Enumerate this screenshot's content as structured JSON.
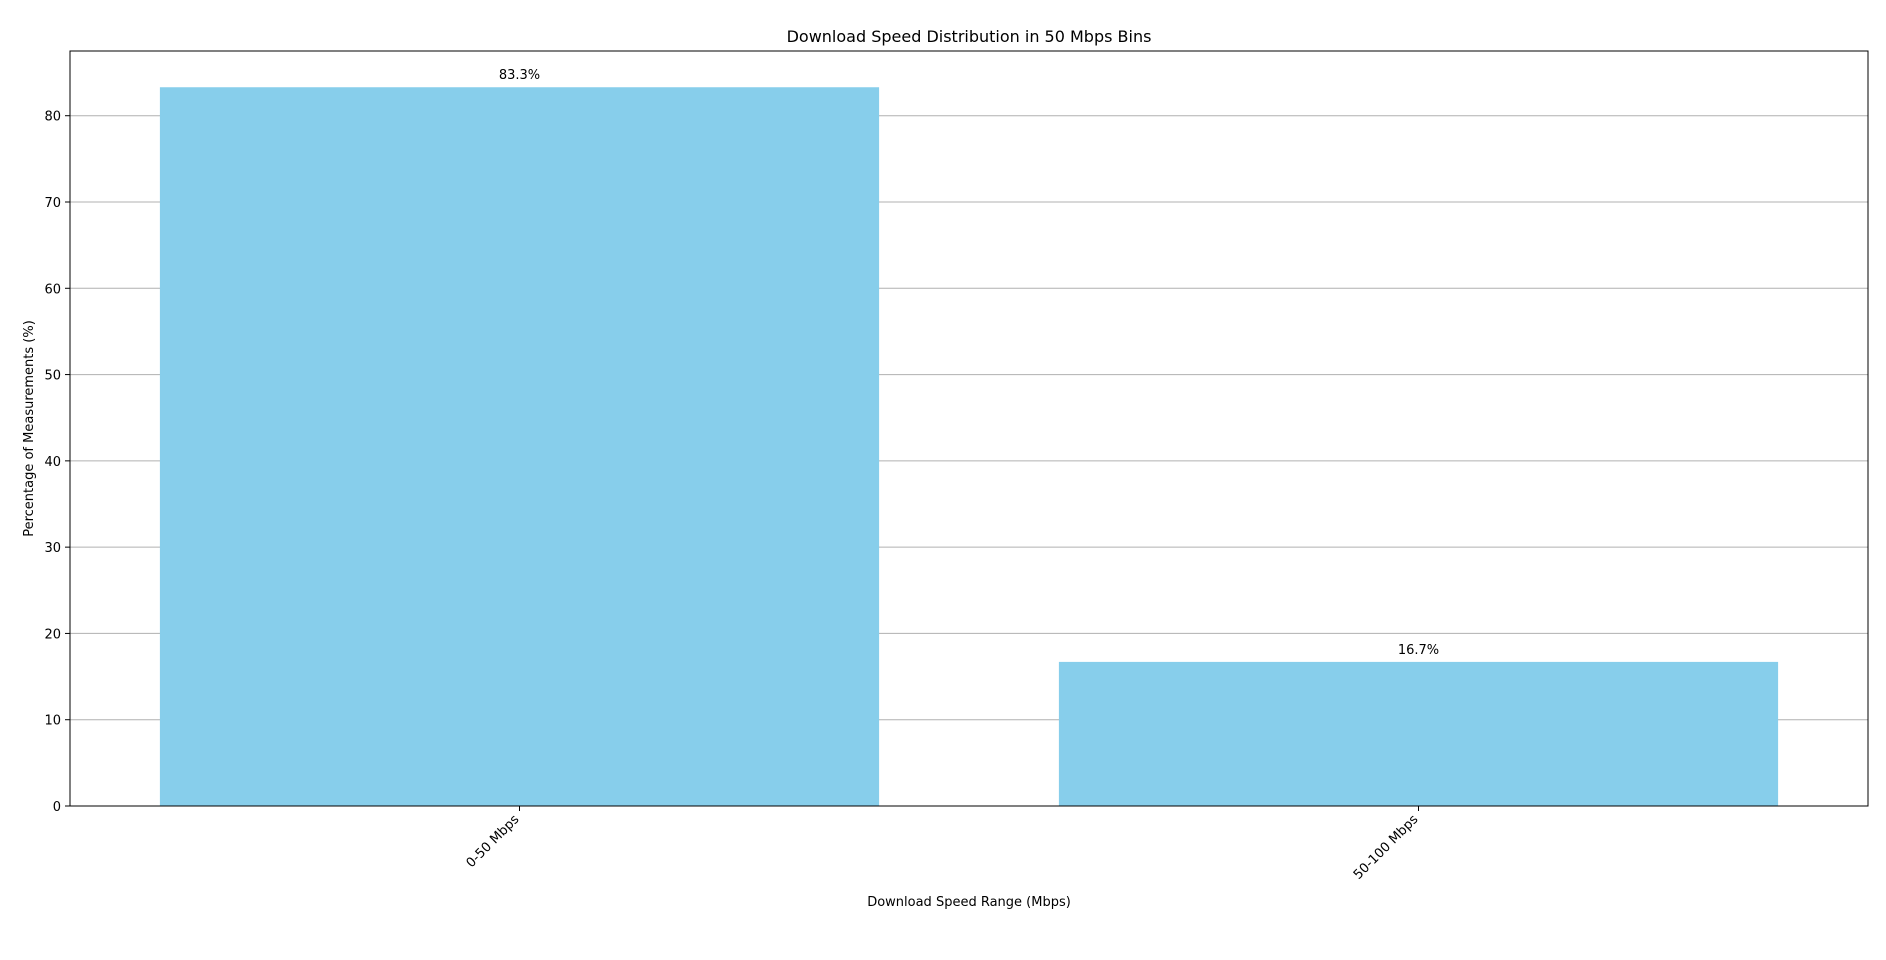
{
  "chart_data": {
    "type": "bar",
    "title": "Download Speed Distribution in 50 Mbps Bins",
    "xlabel": "Download Speed Range (Mbps)",
    "ylabel": "Percentage of Measurements (%)",
    "categories": [
      "0-50 Mbps",
      "50-100 Mbps"
    ],
    "values": [
      83.3,
      16.7
    ],
    "data_labels": [
      "83.3%",
      "16.7%"
    ],
    "ylim": [
      0,
      87.5
    ],
    "yticks": [
      0,
      10,
      20,
      30,
      40,
      50,
      60,
      70,
      80
    ],
    "grid": "y",
    "bar_color": "#87ceeb",
    "grid_color": "#b0b0b0"
  }
}
